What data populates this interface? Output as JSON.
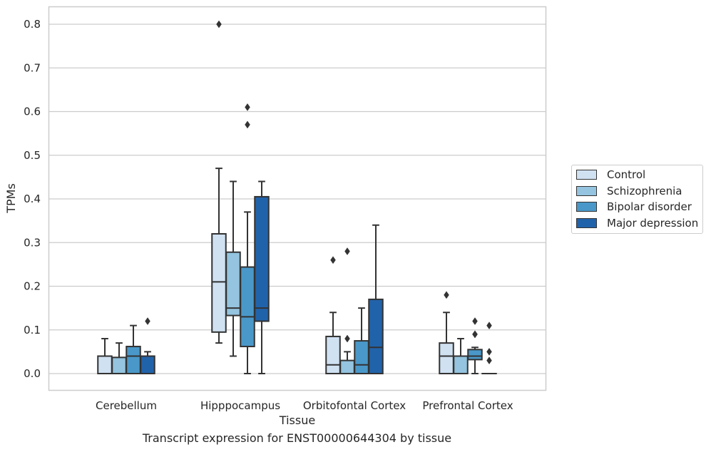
{
  "caption": "Transcript expression for ENST00000644304 by tissue",
  "chart_data": {
    "type": "box",
    "xlabel": "Tissue",
    "ylabel": "TPMs",
    "ylim": [
      -0.04,
      0.84
    ],
    "yticks": [
      "0.0",
      "0.1",
      "0.2",
      "0.3",
      "0.4",
      "0.5",
      "0.6",
      "0.7",
      "0.8"
    ],
    "grid": "horizontal",
    "legend_position": "right",
    "categories": [
      "Cerebellum",
      "Hipppocampus",
      "Orbitofontal Cortex",
      "Prefrontal Cortex"
    ],
    "series": [
      {
        "name": "Control",
        "color": "#d0e1f2",
        "boxes": [
          {
            "whislo": 0,
            "q1": 0,
            "med": 0,
            "q3": 0.04,
            "whishi": 0.08,
            "fliers": []
          },
          {
            "whislo": 0.07,
            "q1": 0.095,
            "med": 0.21,
            "q3": 0.32,
            "whishi": 0.47,
            "fliers": [
              0.8
            ]
          },
          {
            "whislo": 0,
            "q1": 0,
            "med": 0.02,
            "q3": 0.085,
            "whishi": 0.14,
            "fliers": [
              0.26
            ]
          },
          {
            "whislo": 0,
            "q1": 0,
            "med": 0.04,
            "q3": 0.07,
            "whishi": 0.14,
            "fliers": [
              0.18
            ]
          }
        ]
      },
      {
        "name": "Schizophrenia",
        "color": "#94c4df",
        "boxes": [
          {
            "whislo": 0,
            "q1": 0,
            "med": 0,
            "q3": 0.037,
            "whishi": 0.07,
            "fliers": []
          },
          {
            "whislo": 0.04,
            "q1": 0.133,
            "med": 0.15,
            "q3": 0.278,
            "whishi": 0.44,
            "fliers": []
          },
          {
            "whislo": 0,
            "q1": 0,
            "med": 0,
            "q3": 0.03,
            "whishi": 0.05,
            "fliers": [
              0.08,
              0.28
            ]
          },
          {
            "whislo": 0,
            "q1": 0,
            "med": 0.04,
            "q3": 0.04,
            "whishi": 0.08,
            "fliers": []
          }
        ]
      },
      {
        "name": "Bipolar disorder",
        "color": "#4a98c9",
        "boxes": [
          {
            "whislo": 0,
            "q1": 0,
            "med": 0.04,
            "q3": 0.062,
            "whishi": 0.11,
            "fliers": []
          },
          {
            "whislo": 0,
            "q1": 0.062,
            "med": 0.13,
            "q3": 0.244,
            "whishi": 0.37,
            "fliers": [
              0.57,
              0.61
            ]
          },
          {
            "whislo": 0,
            "q1": 0,
            "med": 0.02,
            "q3": 0.075,
            "whishi": 0.15,
            "fliers": []
          },
          {
            "whislo": 0,
            "q1": 0.032,
            "med": 0.04,
            "q3": 0.055,
            "whishi": 0.06,
            "fliers": [
              0.09,
              0.09,
              0.12
            ]
          }
        ]
      },
      {
        "name": "Major depression",
        "color": "#2163aa",
        "boxes": [
          {
            "whislo": 0,
            "q1": 0,
            "med": 0.04,
            "q3": 0.04,
            "whishi": 0.05,
            "fliers": [
              0.12
            ]
          },
          {
            "whislo": 0,
            "q1": 0.12,
            "med": 0.15,
            "q3": 0.405,
            "whishi": 0.44,
            "fliers": []
          },
          {
            "whislo": 0,
            "q1": 0,
            "med": 0.06,
            "q3": 0.17,
            "whishi": 0.34,
            "fliers": []
          },
          {
            "whislo": 0,
            "q1": 0,
            "med": 0,
            "q3": 0,
            "whishi": 0,
            "fliers": [
              0.03,
              0.05,
              0.11
            ]
          }
        ]
      }
    ]
  }
}
